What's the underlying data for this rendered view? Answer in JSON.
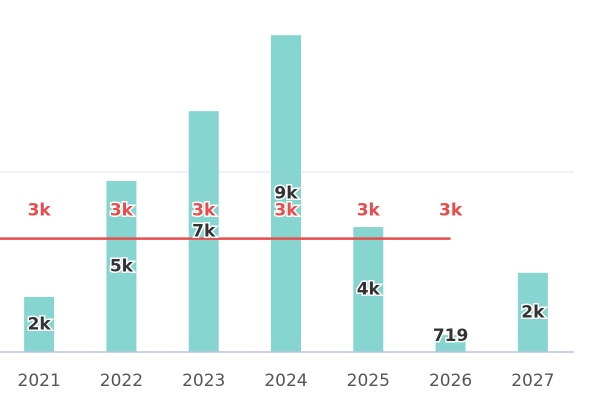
{
  "chart_data": {
    "type": "bar",
    "categories": [
      "2021",
      "2022",
      "2023",
      "2024",
      "2025",
      "2026",
      "2027"
    ],
    "values": [
      1780,
      5000,
      6940,
      9050,
      3720,
      719,
      2450
    ],
    "value_labels": [
      "2k",
      "5k",
      "7k",
      "9k",
      "4k",
      "719",
      "2k"
    ],
    "color": "#86d5d0",
    "line": {
      "color": "#e84c4c",
      "values": [
        3400,
        3400,
        3400,
        3400,
        3400,
        3400,
        null
      ],
      "value_labels": [
        "3k",
        "3k",
        "3k",
        "3k",
        "3k",
        "3k",
        null
      ]
    },
    "ylim": [
      250,
      10000
    ],
    "yticks": [
      5250
    ],
    "grid": true
  }
}
